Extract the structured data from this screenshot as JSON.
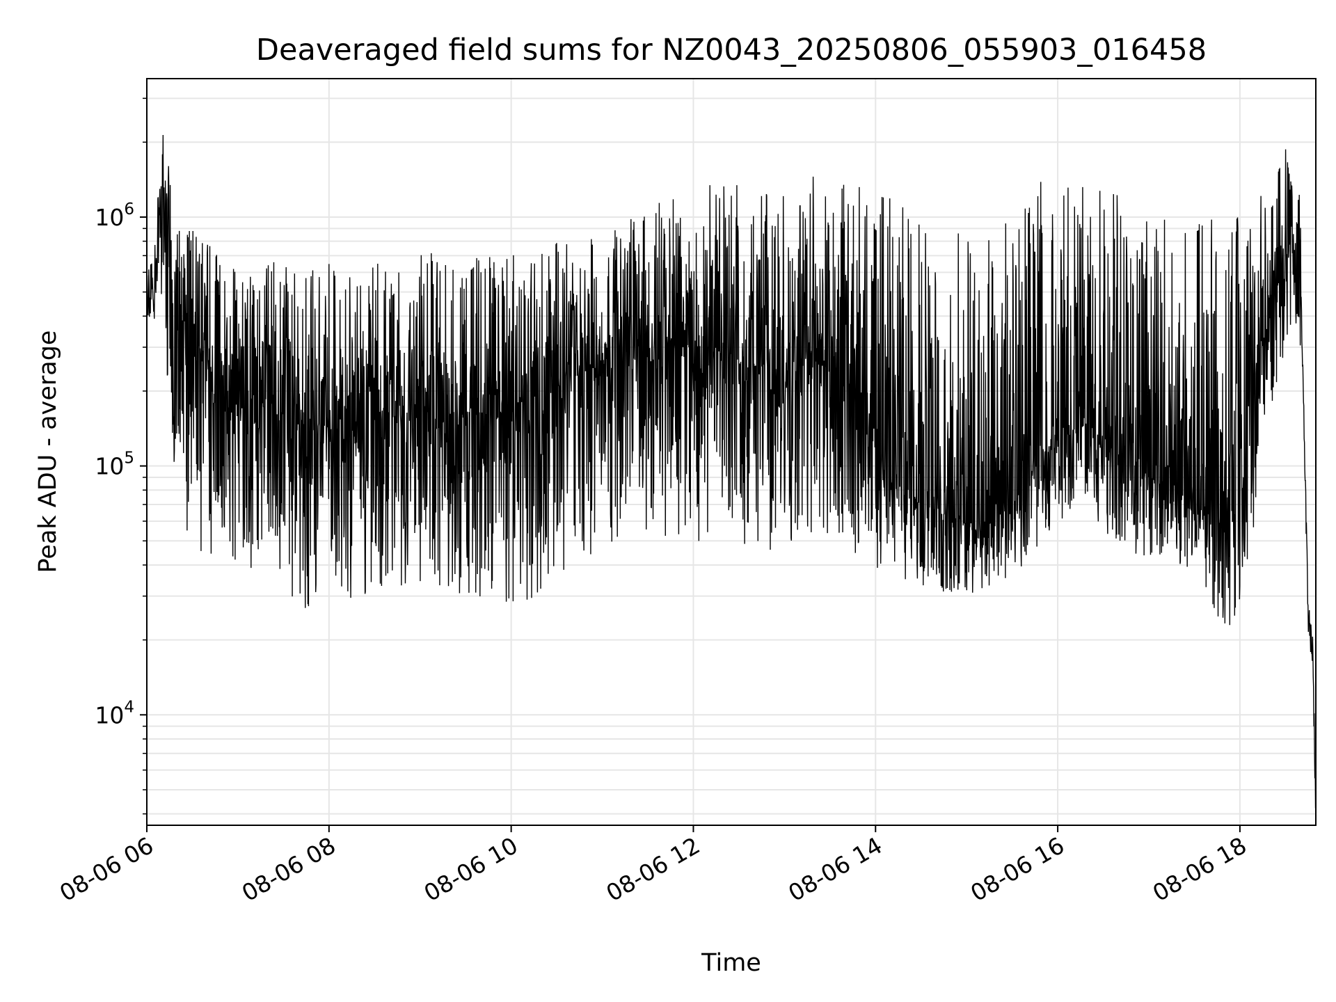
{
  "chart_data": {
    "type": "line",
    "title": "Deaveraged field sums for NZ0043_20250806_055903_016458",
    "xlabel": "Time",
    "ylabel": "Peak ADU - average",
    "x_scale": "time",
    "y_scale": "log",
    "xlim": [
      "08-06 06:00",
      "08-06 18:50"
    ],
    "ylim": [
      3600,
      3600000
    ],
    "xticks": [
      "08-06 06",
      "08-06 08",
      "08-06 10",
      "08-06 12",
      "08-06 14",
      "08-06 16",
      "08-06 18"
    ],
    "yticks": [
      {
        "base": "10",
        "exp": "4",
        "value": 10000
      },
      {
        "base": "10",
        "exp": "5",
        "value": 100000
      },
      {
        "base": "10",
        "exp": "6",
        "value": 1000000
      }
    ],
    "grid": true,
    "line_color": "#000000",
    "grid_color": "#e6e6e6",
    "series": [
      {
        "x": [
          "06:00",
          "06:05",
          "06:10",
          "06:15",
          "06:20",
          "06:25",
          "06:30",
          "06:35",
          "06:40",
          "06:45",
          "06:50",
          "06:55",
          "07:00",
          "07:10",
          "07:20",
          "07:30",
          "07:40",
          "07:50",
          "08:00",
          "08:15",
          "08:30",
          "08:45",
          "09:00",
          "09:15",
          "09:30",
          "09:45",
          "10:00",
          "10:15",
          "10:30",
          "10:45",
          "11:00",
          "11:15",
          "11:30",
          "11:45",
          "12:00",
          "12:15",
          "12:30",
          "12:45",
          "13:00",
          "13:15",
          "13:30",
          "13:45",
          "14:00",
          "14:15",
          "14:30",
          "14:45",
          "15:00",
          "15:15",
          "15:30",
          "15:45",
          "16:00",
          "16:15",
          "16:30",
          "16:45",
          "17:00",
          "17:15",
          "17:30",
          "17:40",
          "17:50",
          "18:00",
          "18:10",
          "18:20",
          "18:30",
          "18:35",
          "18:40",
          "18:45",
          "18:48",
          "18:50"
        ],
        "median": [
          450000,
          500000,
          1300000,
          600000,
          420000,
          360000,
          300000,
          280000,
          260000,
          240000,
          220000,
          200000,
          190000,
          180000,
          170000,
          160000,
          150000,
          145000,
          140000,
          140000,
          150000,
          160000,
          170000,
          170000,
          170000,
          170000,
          180000,
          200000,
          220000,
          240000,
          260000,
          280000,
          290000,
          300000,
          300000,
          280000,
          260000,
          250000,
          260000,
          270000,
          260000,
          220000,
          120000,
          90000,
          70000,
          65000,
          60000,
          60000,
          70000,
          100000,
          140000,
          150000,
          130000,
          100000,
          90000,
          85000,
          80000,
          65000,
          60000,
          90000,
          250000,
          400000,
          700000,
          800000,
          600000,
          25000,
          18000,
          4000
        ],
        "high": [
          600000,
          800000,
          2600000,
          1500000,
          1000000,
          1000000,
          900000,
          800000,
          800000,
          800000,
          750000,
          700000,
          700000,
          650000,
          650000,
          700000,
          650000,
          650000,
          650000,
          650000,
          700000,
          750000,
          750000,
          750000,
          700000,
          700000,
          700000,
          750000,
          800000,
          850000,
          900000,
          950000,
          1100000,
          1200000,
          1300000,
          1400000,
          1350000,
          1300000,
          1400000,
          1500000,
          1400000,
          1350000,
          1300000,
          1200000,
          1100000,
          1000000,
          1000000,
          1100000,
          1200000,
          1400000,
          1400000,
          1400000,
          1300000,
          1200000,
          1100000,
          1000000,
          1000000,
          1000000,
          1000000,
          1000000,
          1300000,
          1500000,
          2000000,
          1500000,
          1200000,
          30000,
          22000,
          6000
        ],
        "low": [
          400000,
          350000,
          500000,
          150000,
          80000,
          55000,
          50000,
          45000,
          45000,
          42000,
          40000,
          38000,
          40000,
          38000,
          35000,
          30000,
          28000,
          25000,
          24000,
          28000,
          30000,
          32000,
          33000,
          33000,
          30000,
          27000,
          25000,
          28000,
          35000,
          40000,
          45000,
          50000,
          55000,
          50000,
          48000,
          45000,
          45000,
          45000,
          45000,
          48000,
          50000,
          45000,
          38000,
          35000,
          33000,
          30000,
          30000,
          32000,
          35000,
          45000,
          60000,
          65000,
          55000,
          45000,
          42000,
          40000,
          35000,
          28000,
          22000,
          25000,
          60000,
          150000,
          300000,
          350000,
          300000,
          18000,
          12000,
          4000
        ]
      }
    ]
  }
}
